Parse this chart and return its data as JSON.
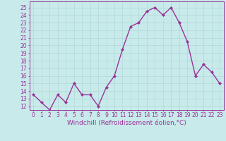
{
  "x": [
    0,
    1,
    2,
    3,
    4,
    5,
    6,
    7,
    8,
    9,
    10,
    11,
    12,
    13,
    14,
    15,
    16,
    17,
    18,
    19,
    20,
    21,
    22,
    23
  ],
  "y": [
    13.5,
    12.5,
    11.5,
    13.5,
    12.5,
    15.0,
    13.5,
    13.5,
    12.0,
    14.5,
    16.0,
    19.5,
    22.5,
    23.0,
    24.5,
    25.0,
    24.0,
    25.0,
    23.0,
    20.5,
    16.0,
    17.5,
    16.5,
    15.0
  ],
  "line_color": "#993399",
  "marker": "D",
  "marker_size": 2.0,
  "line_width": 1.0,
  "xlabel": "Windchill (Refroidissement éolien,°C)",
  "xlabel_fontsize": 6.5,
  "xtick_labels": [
    "0",
    "1",
    "2",
    "3",
    "4",
    "5",
    "6",
    "7",
    "8",
    "9",
    "10",
    "11",
    "12",
    "13",
    "14",
    "15",
    "16",
    "17",
    "18",
    "19",
    "20",
    "21",
    "22",
    "23"
  ],
  "ytick_vals": [
    12,
    13,
    14,
    15,
    16,
    17,
    18,
    19,
    20,
    21,
    22,
    23,
    24,
    25
  ],
  "ytick_labels": [
    "12",
    "13",
    "14",
    "15",
    "16",
    "17",
    "18",
    "19",
    "20",
    "21",
    "22",
    "23",
    "24",
    "25"
  ],
  "ylim": [
    11.5,
    25.8
  ],
  "xlim": [
    -0.5,
    23.5
  ],
  "grid_color": "#b0d8d8",
  "background_color": "#c8eaea",
  "tick_fontsize": 5.5,
  "xlabel_color": "#993399"
}
